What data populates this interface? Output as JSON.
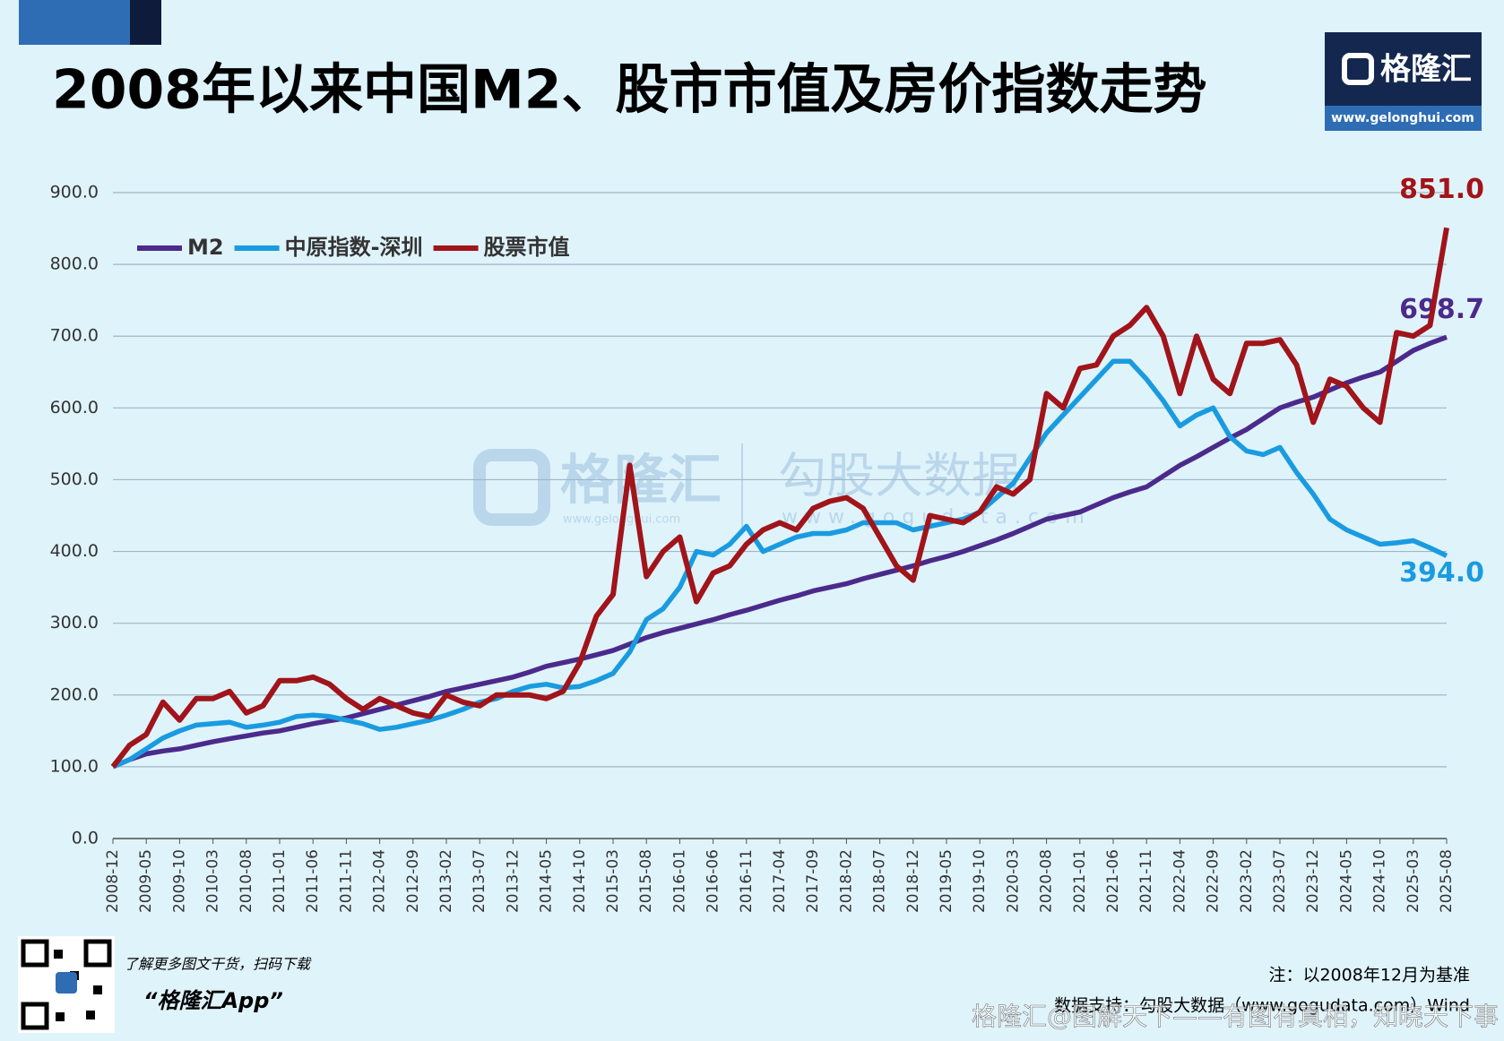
{
  "header": {
    "title": "2008年以来中国M2、股市市值及房价指数走势",
    "logo": "格隆汇",
    "logo_url": "www.gelonghui.com"
  },
  "watermark": {
    "left": "格隆汇",
    "left_url": "www.gelonghui.com",
    "right": "勾股大数据",
    "right_url": "www.gogudata.com"
  },
  "chart_data": {
    "type": "line",
    "categories": [
      "2008-12",
      null,
      "2009-05",
      null,
      "2009-10",
      null,
      "2010-03",
      null,
      "2010-08",
      null,
      "2011-01",
      null,
      "2011-06",
      null,
      "2011-11",
      null,
      "2012-04",
      null,
      "2012-09",
      null,
      "2013-02",
      null,
      "2013-07",
      null,
      "2013-12",
      null,
      "2014-05",
      null,
      "2014-10",
      null,
      "2015-03",
      null,
      "2015-08",
      null,
      "2016-01",
      null,
      "2016-06",
      null,
      "2016-11",
      null,
      "2017-04",
      null,
      "2017-09",
      null,
      "2018-02",
      null,
      "2018-07",
      null,
      "2018-12",
      null,
      "2019-05",
      null,
      "2019-10",
      null,
      "2020-03",
      null,
      "2020-08",
      null,
      "2021-01",
      null,
      "2021-06",
      null,
      "2021-11",
      null,
      "2022-04",
      null,
      "2022-09",
      null,
      "2023-02",
      null,
      "2023-07",
      null,
      "2023-12",
      null,
      "2024-05",
      null,
      "2024-10",
      null,
      "2025-03",
      null,
      "2025-08"
    ],
    "series": [
      {
        "name": "M2",
        "color": "#4b2a8c",
        "last_label": "698.7",
        "values": [
          100,
          110,
          118,
          122,
          125,
          130,
          135,
          139,
          143,
          147,
          150,
          155,
          160,
          164,
          168,
          174,
          180,
          186,
          192,
          198,
          205,
          210,
          215,
          220,
          225,
          232,
          240,
          245,
          250,
          256,
          262,
          271,
          280,
          287,
          293,
          299,
          305,
          312,
          318,
          325,
          332,
          338,
          345,
          350,
          355,
          362,
          368,
          374,
          380,
          387,
          393,
          400,
          408,
          416,
          425,
          435,
          445,
          450,
          455,
          465,
          475,
          483,
          490,
          505,
          520,
          532,
          545,
          558,
          570,
          585,
          600,
          608,
          615,
          625,
          635,
          643,
          650,
          665,
          680,
          690,
          698.7
        ]
      },
      {
        "name": "中原指数-深圳",
        "color": "#1a9be0",
        "last_label": "394.0",
        "values": [
          100,
          110,
          125,
          140,
          150,
          158,
          160,
          162,
          155,
          158,
          162,
          170,
          172,
          170,
          165,
          160,
          152,
          155,
          160,
          165,
          172,
          180,
          190,
          195,
          205,
          212,
          215,
          210,
          212,
          220,
          230,
          260,
          305,
          320,
          350,
          400,
          395,
          410,
          435,
          400,
          410,
          420,
          425,
          425,
          430,
          440,
          440,
          440,
          430,
          435,
          440,
          445,
          455,
          475,
          495,
          530,
          565,
          590,
          615,
          640,
          665,
          665,
          640,
          610,
          575,
          590,
          600,
          560,
          540,
          535,
          545,
          510,
          480,
          445,
          430,
          420,
          410,
          412,
          415,
          405,
          394
        ]
      },
      {
        "name": "股票市值",
        "color": "#a0141a",
        "last_label": "851.0",
        "values": [
          100,
          130,
          145,
          190,
          165,
          195,
          195,
          205,
          175,
          185,
          220,
          220,
          225,
          215,
          195,
          180,
          195,
          185,
          175,
          170,
          200,
          190,
          185,
          200,
          200,
          200,
          195,
          205,
          245,
          310,
          340,
          520,
          365,
          400,
          420,
          330,
          370,
          380,
          410,
          430,
          440,
          430,
          460,
          470,
          475,
          460,
          420,
          380,
          360,
          450,
          445,
          440,
          455,
          490,
          480,
          500,
          620,
          600,
          655,
          660,
          700,
          715,
          740,
          700,
          620,
          700,
          640,
          620,
          690,
          690,
          695,
          660,
          580,
          640,
          630,
          600,
          580,
          705,
          700,
          715,
          851
        ]
      }
    ],
    "ylim": [
      0,
      900
    ],
    "yticks": [
      {
        "value": 0,
        "label": "0.0"
      },
      {
        "value": 100,
        "label": "100.0"
      },
      {
        "value": 200,
        "label": "200.0"
      },
      {
        "value": 300,
        "label": "300.0"
      },
      {
        "value": 400,
        "label": "400.0"
      },
      {
        "value": 500,
        "label": "500.0"
      },
      {
        "value": 600,
        "label": "600.0"
      },
      {
        "value": 700,
        "label": "700.0"
      },
      {
        "value": 800,
        "label": "800.0"
      },
      {
        "value": 900,
        "label": "900.0"
      }
    ],
    "grid": true,
    "legend": "top-left"
  },
  "footer": {
    "qr_caption": "了解更多图文干货，扫码下载",
    "app": "“格隆汇App”",
    "note": "注：以2008年12月为基准",
    "source": "数据支持：勾股大数据（www.gogudata.com）Wind",
    "credit": "格隆汇@图解天下——有图有真相，知晓天下事"
  }
}
